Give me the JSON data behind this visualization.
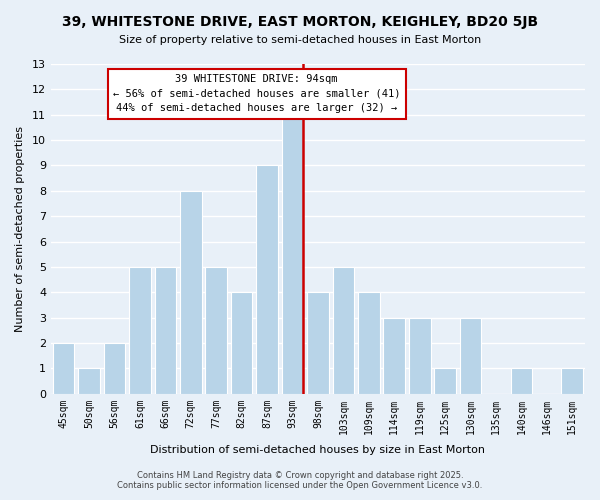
{
  "title": "39, WHITESTONE DRIVE, EAST MORTON, KEIGHLEY, BD20 5JB",
  "subtitle": "Size of property relative to semi-detached houses in East Morton",
  "xlabel": "Distribution of semi-detached houses by size in East Morton",
  "ylabel": "Number of semi-detached properties",
  "categories": [
    "45sqm",
    "50sqm",
    "56sqm",
    "61sqm",
    "66sqm",
    "72sqm",
    "77sqm",
    "82sqm",
    "87sqm",
    "93sqm",
    "98sqm",
    "103sqm",
    "109sqm",
    "114sqm",
    "119sqm",
    "125sqm",
    "130sqm",
    "135sqm",
    "140sqm",
    "146sqm",
    "151sqm"
  ],
  "values": [
    2,
    1,
    2,
    5,
    5,
    8,
    5,
    4,
    9,
    11,
    4,
    5,
    4,
    3,
    3,
    1,
    3,
    0,
    1,
    0,
    1
  ],
  "bar_color": "#b8d4e8",
  "bar_edge_color": "#ffffff",
  "grid_color": "#ffffff",
  "bg_color": "#e8f0f8",
  "vline_color": "#cc0000",
  "vline_x_index": 9,
  "annotation_title": "39 WHITESTONE DRIVE: 94sqm",
  "annotation_line1": "← 56% of semi-detached houses are smaller (41)",
  "annotation_line2": "44% of semi-detached houses are larger (32) →",
  "annotation_box_color": "#ffffff",
  "annotation_box_edge": "#cc0000",
  "footer1": "Contains HM Land Registry data © Crown copyright and database right 2025.",
  "footer2": "Contains public sector information licensed under the Open Government Licence v3.0.",
  "ylim": [
    0,
    13
  ],
  "yticks": [
    0,
    1,
    2,
    3,
    4,
    5,
    6,
    7,
    8,
    9,
    10,
    11,
    12,
    13
  ]
}
